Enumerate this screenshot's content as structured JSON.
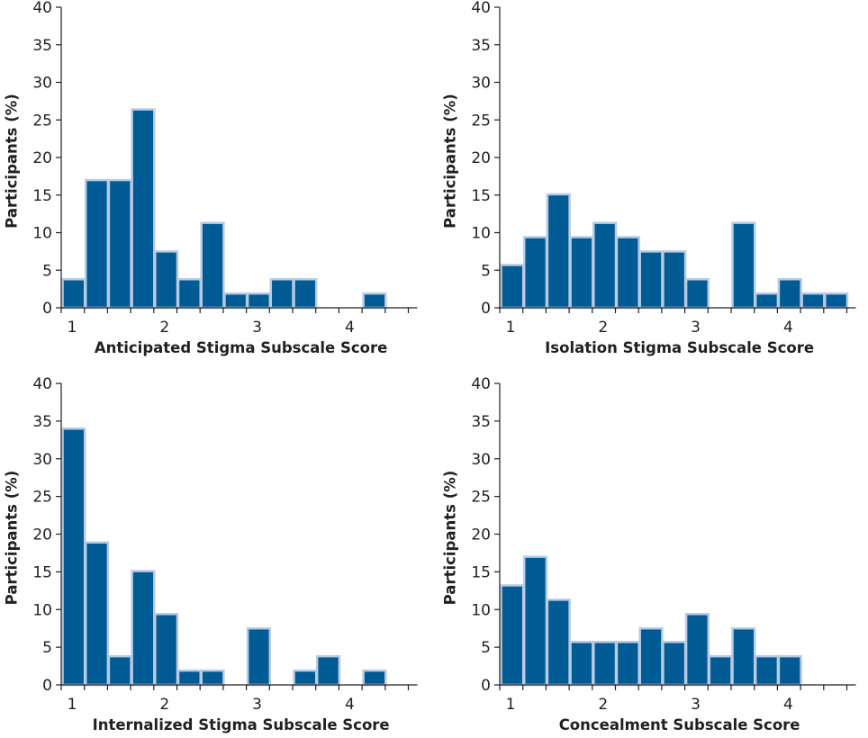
{
  "figure": {
    "panel_count": 4
  },
  "chart_data": [
    {
      "type": "bar",
      "id": "anticipated",
      "title": "",
      "xlabel": "Anticipated Stigma Subscale Score",
      "ylabel": "Participants (%)",
      "bin_start": 1.0,
      "bin_width": 0.25,
      "xlim": [
        1.0,
        4.75
      ],
      "ylim": [
        0,
        40
      ],
      "yticks": [
        0,
        5,
        10,
        15,
        20,
        25,
        30,
        35,
        40
      ],
      "xtick_labels": [
        "1",
        "2",
        "3",
        "4"
      ],
      "xtick_values": [
        1,
        2,
        3,
        4
      ],
      "values": [
        3.8,
        17.0,
        17.0,
        26.4,
        7.5,
        3.8,
        11.3,
        1.9,
        1.9,
        3.8,
        3.8,
        0,
        0,
        1.9
      ],
      "grid": false,
      "bar_color": "#005a93",
      "bar_edge_color": "#b9cbe3"
    },
    {
      "type": "bar",
      "id": "isolation",
      "title": "",
      "xlabel": "Isolation Stigma Subscale Score",
      "ylabel": "Participants (%)",
      "bin_start": 1.0,
      "bin_width": 0.25,
      "xlim": [
        1.0,
        4.75
      ],
      "ylim": [
        0,
        40
      ],
      "yticks": [
        0,
        5,
        10,
        15,
        20,
        25,
        30,
        35,
        40
      ],
      "xtick_labels": [
        "1",
        "2",
        "3",
        "4"
      ],
      "xtick_values": [
        1,
        2,
        3,
        4
      ],
      "values": [
        5.7,
        9.4,
        15.1,
        9.4,
        11.3,
        9.4,
        7.5,
        7.5,
        3.8,
        0,
        11.3,
        1.9,
        3.8,
        1.9,
        1.9
      ],
      "grid": false,
      "bar_color": "#005a93",
      "bar_edge_color": "#b9cbe3"
    },
    {
      "type": "bar",
      "id": "internalized",
      "title": "",
      "xlabel": "Internalized Stigma Subscale Score",
      "ylabel": "Participants (%)",
      "bin_start": 1.0,
      "bin_width": 0.25,
      "xlim": [
        1.0,
        4.75
      ],
      "ylim": [
        0,
        40
      ],
      "yticks": [
        0,
        5,
        10,
        15,
        20,
        25,
        30,
        35,
        40
      ],
      "xtick_labels": [
        "1",
        "2",
        "3",
        "4"
      ],
      "xtick_values": [
        1,
        2,
        3,
        4
      ],
      "values": [
        34.0,
        18.9,
        3.8,
        15.1,
        9.4,
        1.9,
        1.9,
        0,
        7.5,
        0,
        1.9,
        3.8,
        0,
        1.9
      ],
      "grid": false,
      "bar_color": "#005a93",
      "bar_edge_color": "#b9cbe3"
    },
    {
      "type": "bar",
      "id": "concealment",
      "title": "",
      "xlabel": "Concealment Subscale Score",
      "ylabel": "Participants (%)",
      "bin_start": 1.0,
      "bin_width": 0.25,
      "xlim": [
        1.0,
        4.75
      ],
      "ylim": [
        0,
        40
      ],
      "yticks": [
        0,
        5,
        10,
        15,
        20,
        25,
        30,
        35,
        40
      ],
      "xtick_labels": [
        "1",
        "2",
        "3",
        "4"
      ],
      "xtick_values": [
        1,
        2,
        3,
        4
      ],
      "values": [
        13.2,
        17.0,
        11.3,
        5.7,
        5.7,
        5.7,
        7.5,
        5.7,
        9.4,
        3.8,
        7.5,
        3.8,
        3.8
      ],
      "grid": false,
      "bar_color": "#005a93",
      "bar_edge_color": "#b9cbe3"
    }
  ]
}
